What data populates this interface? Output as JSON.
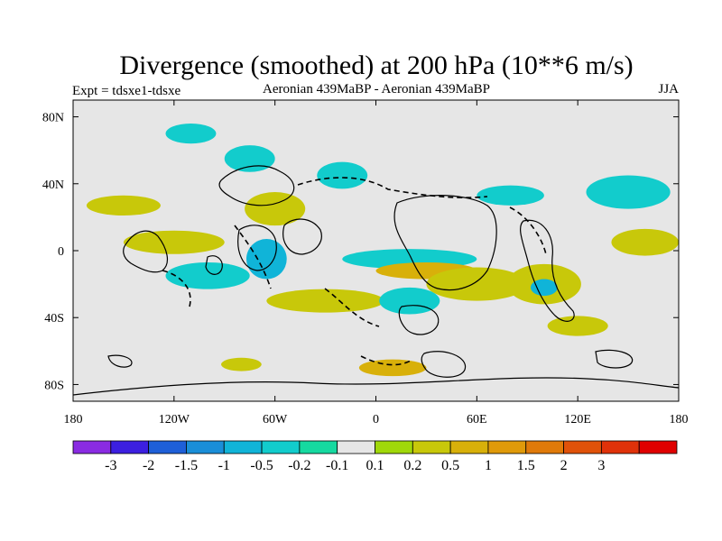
{
  "chart_data": {
    "type": "heatmap",
    "title": "Divergence (smoothed) at 200 hPa (10**6 m/s)",
    "left_label": "Expt = tdsxe1-tdsxe",
    "center_label": "Aeronian 439MaBP - Aeronian 439MaBP",
    "right_label": "JJA",
    "xlim": [
      -180,
      180
    ],
    "ylim": [
      -90,
      90
    ],
    "x_ticks": [
      {
        "value": -180,
        "label": "180"
      },
      {
        "value": -120,
        "label": "120W"
      },
      {
        "value": -60,
        "label": "60W"
      },
      {
        "value": 0,
        "label": "0"
      },
      {
        "value": 60,
        "label": "60E"
      },
      {
        "value": 120,
        "label": "120E"
      },
      {
        "value": 180,
        "label": "180"
      }
    ],
    "y_ticks": [
      {
        "value": 80,
        "label": "80N"
      },
      {
        "value": 40,
        "label": "40N"
      },
      {
        "value": 0,
        "label": "0"
      },
      {
        "value": -40,
        "label": "40S"
      },
      {
        "value": -80,
        "label": "80S"
      }
    ],
    "colorbar": {
      "colors": [
        "#8a2be2",
        "#3c1fe0",
        "#1e5fd8",
        "#1a8ed8",
        "#10b4d8",
        "#12cccc",
        "#16d9a0",
        "#e6e6e6",
        "#a0d80a",
        "#c8c80a",
        "#d8b00a",
        "#e09a0a",
        "#e07a0a",
        "#e0520a",
        "#e0320a",
        "#e00000"
      ],
      "labels": [
        "-3",
        "-2",
        "-1.5",
        "-1",
        "-0.5",
        "-0.2",
        "-0.1",
        "0.1",
        "0.2",
        "0.5",
        "1",
        "1.5",
        "2",
        "3"
      ]
    },
    "field_blobs": [
      {
        "lon": -150,
        "lat": 27,
        "rx": 22,
        "ry": 6,
        "level": "0.2"
      },
      {
        "lon": -120,
        "lat": 5,
        "rx": 30,
        "ry": 7,
        "level": "0.2"
      },
      {
        "lon": -100,
        "lat": -15,
        "rx": 25,
        "ry": 8,
        "level": "-0.2"
      },
      {
        "lon": -75,
        "lat": 55,
        "rx": 15,
        "ry": 8,
        "level": "-0.2"
      },
      {
        "lon": -60,
        "lat": 25,
        "rx": 18,
        "ry": 10,
        "level": "0.2"
      },
      {
        "lon": -65,
        "lat": -5,
        "rx": 12,
        "ry": 12,
        "level": "-0.5"
      },
      {
        "lon": -30,
        "lat": -30,
        "rx": 35,
        "ry": 7,
        "level": "0.2"
      },
      {
        "lon": 20,
        "lat": -5,
        "rx": 40,
        "ry": 6,
        "level": "-0.2"
      },
      {
        "lon": 30,
        "lat": -12,
        "rx": 30,
        "ry": 5,
        "level": "0.5"
      },
      {
        "lon": 60,
        "lat": -20,
        "rx": 30,
        "ry": 10,
        "level": "0.2"
      },
      {
        "lon": 20,
        "lat": -30,
        "rx": 18,
        "ry": 8,
        "level": "-0.2"
      },
      {
        "lon": 100,
        "lat": -20,
        "rx": 22,
        "ry": 12,
        "level": "0.2"
      },
      {
        "lon": 100,
        "lat": -22,
        "rx": 8,
        "ry": 5,
        "level": "-0.5"
      },
      {
        "lon": 80,
        "lat": 33,
        "rx": 20,
        "ry": 6,
        "level": "-0.2"
      },
      {
        "lon": 150,
        "lat": 35,
        "rx": 25,
        "ry": 10,
        "level": "-0.2"
      },
      {
        "lon": 160,
        "lat": 5,
        "rx": 20,
        "ry": 8,
        "level": "0.2"
      },
      {
        "lon": 10,
        "lat": -70,
        "rx": 20,
        "ry": 5,
        "level": "0.5"
      },
      {
        "lon": -80,
        "lat": -68,
        "rx": 12,
        "ry": 4,
        "level": "0.2"
      },
      {
        "lon": -110,
        "lat": 70,
        "rx": 15,
        "ry": 6,
        "level": "-0.2"
      },
      {
        "lon": -20,
        "lat": 45,
        "rx": 15,
        "ry": 8,
        "level": "-0.2"
      },
      {
        "lon": 120,
        "lat": -45,
        "rx": 18,
        "ry": 6,
        "level": "0.2"
      }
    ]
  }
}
